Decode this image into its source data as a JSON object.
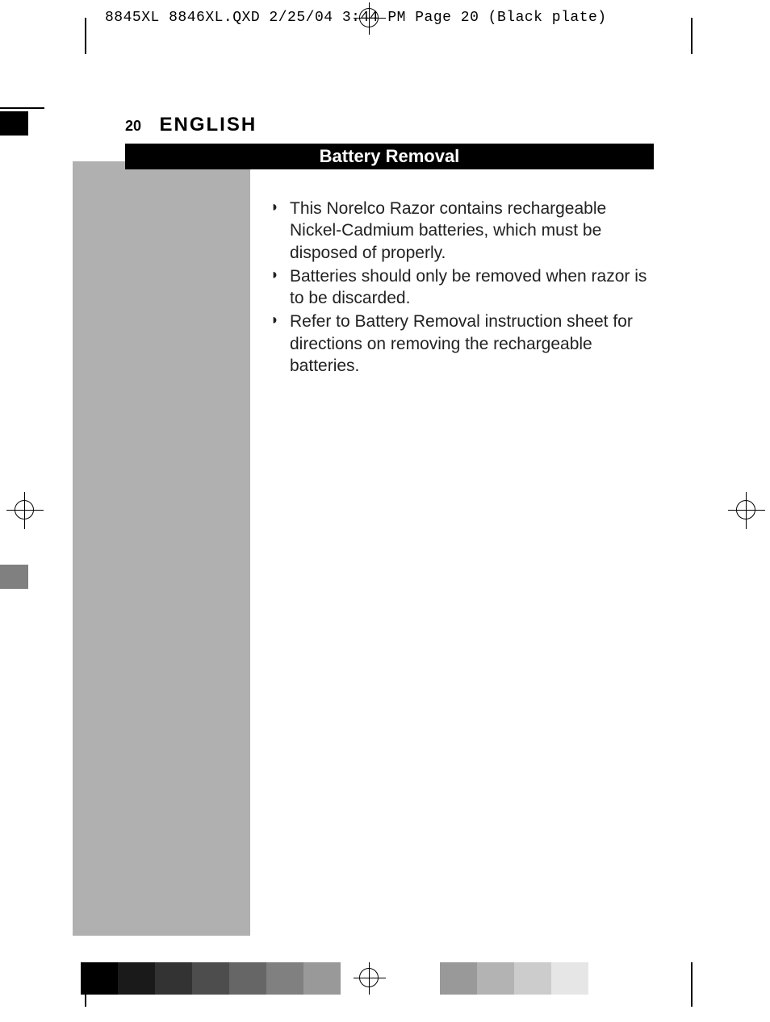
{
  "slug_line": "8845XL 8846XL.QXD  2/25/04  3:44 PM  Page 20    (Black plate)",
  "header": {
    "page_number": "20",
    "language": "ENGLISH"
  },
  "section_title": "Battery Removal",
  "bullets": [
    "This Norelco Razor contains rechargeable Nickel-Cadmium batteries, which must be disposed of properly.",
    "Batteries should only be removed when razor is to be discarded.",
    "Refer to Battery Removal instruction sheet for directions on removing the rechargeable batteries."
  ],
  "colors": {
    "sidebar_gray": "#b0b0b0",
    "title_bg": "#000000",
    "title_fg": "#ffffff",
    "left_mid_swatch": "#808080"
  },
  "bottom_swatches_left": [
    "#000000",
    "#1a1a1a",
    "#333333",
    "#4d4d4d",
    "#666666",
    "#808080",
    "#999999"
  ],
  "bottom_swatches_right": [
    "#999999",
    "#b3b3b3",
    "#cccccc",
    "#e6e6e6"
  ]
}
